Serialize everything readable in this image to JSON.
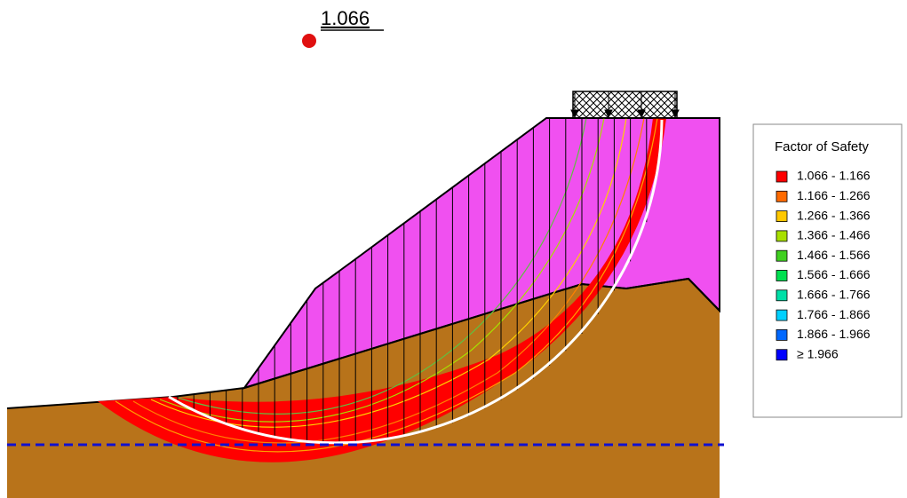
{
  "critical_fos": "1.066",
  "legend": {
    "title": "Factor of Safety",
    "items": [
      {
        "label": "1.066 - 1.166",
        "color": "#ff0000"
      },
      {
        "label": "1.166 - 1.266",
        "color": "#ff6a00"
      },
      {
        "label": "1.266 - 1.366",
        "color": "#ffc800"
      },
      {
        "label": "1.366 - 1.466",
        "color": "#a8e000"
      },
      {
        "label": "1.466 - 1.566",
        "color": "#40d020"
      },
      {
        "label": "1.566 - 1.666",
        "color": "#00e050"
      },
      {
        "label": "1.666 - 1.766",
        "color": "#00e0a8"
      },
      {
        "label": "1.766 - 1.866",
        "color": "#00d0ff"
      },
      {
        "label": "1.866 - 1.966",
        "color": "#0068ff"
      },
      {
        "label": "≥ 1.966",
        "color": "#0000ff"
      }
    ]
  }
}
